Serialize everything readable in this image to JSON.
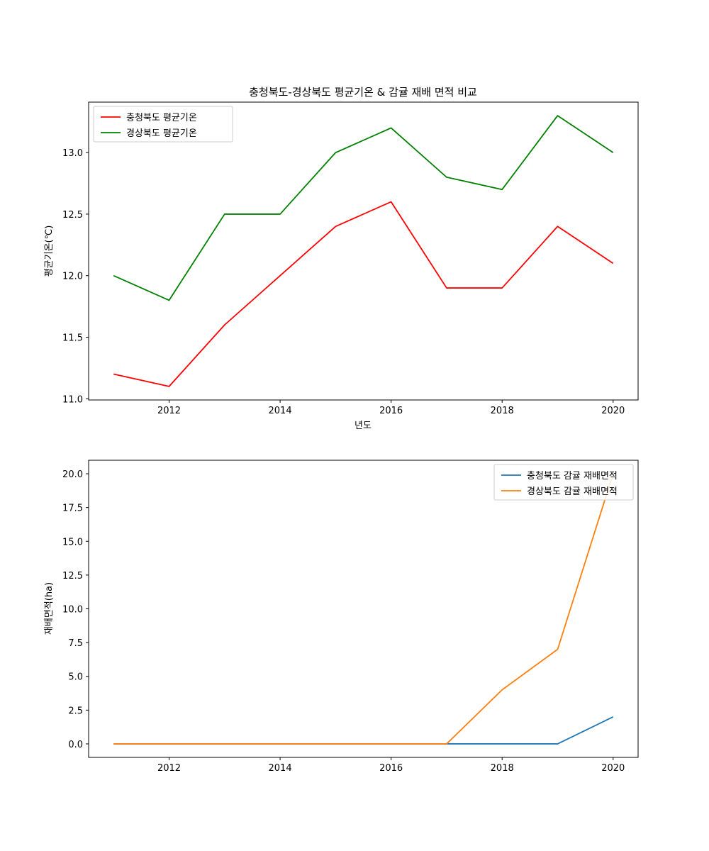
{
  "chart_data": [
    {
      "type": "line",
      "title": "충청북도-경상북도 평균기온 & 감귤 재배 면적 비교",
      "xlabel": "년도",
      "ylabel": "평균기온(℃)",
      "x": [
        2011,
        2012,
        2013,
        2014,
        2015,
        2016,
        2017,
        2018,
        2019,
        2020
      ],
      "xlim": [
        2010.55,
        2020.45
      ],
      "ylim": [
        10.99,
        13.41
      ],
      "xticks": [
        2012,
        2014,
        2016,
        2018,
        2020
      ],
      "xtick_labels": [
        "2012",
        "2014",
        "2016",
        "2018",
        "2020"
      ],
      "yticks": [
        11.0,
        11.5,
        12.0,
        12.5,
        13.0
      ],
      "ytick_labels": [
        "11.0",
        "11.5",
        "12.0",
        "12.5",
        "13.0"
      ],
      "grid": false,
      "legend_position": "upper-left",
      "series": [
        {
          "name": "충청북도 평균기온",
          "color": "#ff0000",
          "values": [
            11.2,
            11.1,
            11.6,
            12.0,
            12.4,
            12.6,
            11.9,
            11.9,
            12.4,
            12.1
          ]
        },
        {
          "name": "경상북도 평균기온",
          "color": "#008000",
          "values": [
            12.0,
            11.8,
            12.5,
            12.5,
            13.0,
            13.2,
            12.8,
            12.7,
            13.3,
            13.0
          ]
        }
      ]
    },
    {
      "type": "line",
      "title": "",
      "xlabel": "",
      "ylabel": "재배면적(ha)",
      "x": [
        2011,
        2012,
        2013,
        2014,
        2015,
        2016,
        2017,
        2018,
        2019,
        2020
      ],
      "xlim": [
        2010.55,
        2020.45
      ],
      "ylim": [
        -1.0,
        21.0
      ],
      "xticks": [
        2012,
        2014,
        2016,
        2018,
        2020
      ],
      "xtick_labels": [
        "2012",
        "2014",
        "2016",
        "2018",
        "2020"
      ],
      "yticks": [
        0.0,
        2.5,
        5.0,
        7.5,
        10.0,
        12.5,
        15.0,
        17.5,
        20.0
      ],
      "ytick_labels": [
        "0.0",
        "2.5",
        "5.0",
        "7.5",
        "10.0",
        "12.5",
        "15.0",
        "17.5",
        "20.0"
      ],
      "grid": false,
      "legend_position": "upper-right",
      "series": [
        {
          "name": "충청북도 감귤 재배면적",
          "color": "#1f77b4",
          "values": [
            0,
            0,
            0,
            0,
            0,
            0,
            0,
            0,
            0,
            2
          ]
        },
        {
          "name": "경상북도 감귤 재배면적",
          "color": "#ff7f0e",
          "values": [
            0,
            0,
            0,
            0,
            0,
            0,
            0,
            4,
            7,
            20
          ]
        }
      ]
    }
  ]
}
